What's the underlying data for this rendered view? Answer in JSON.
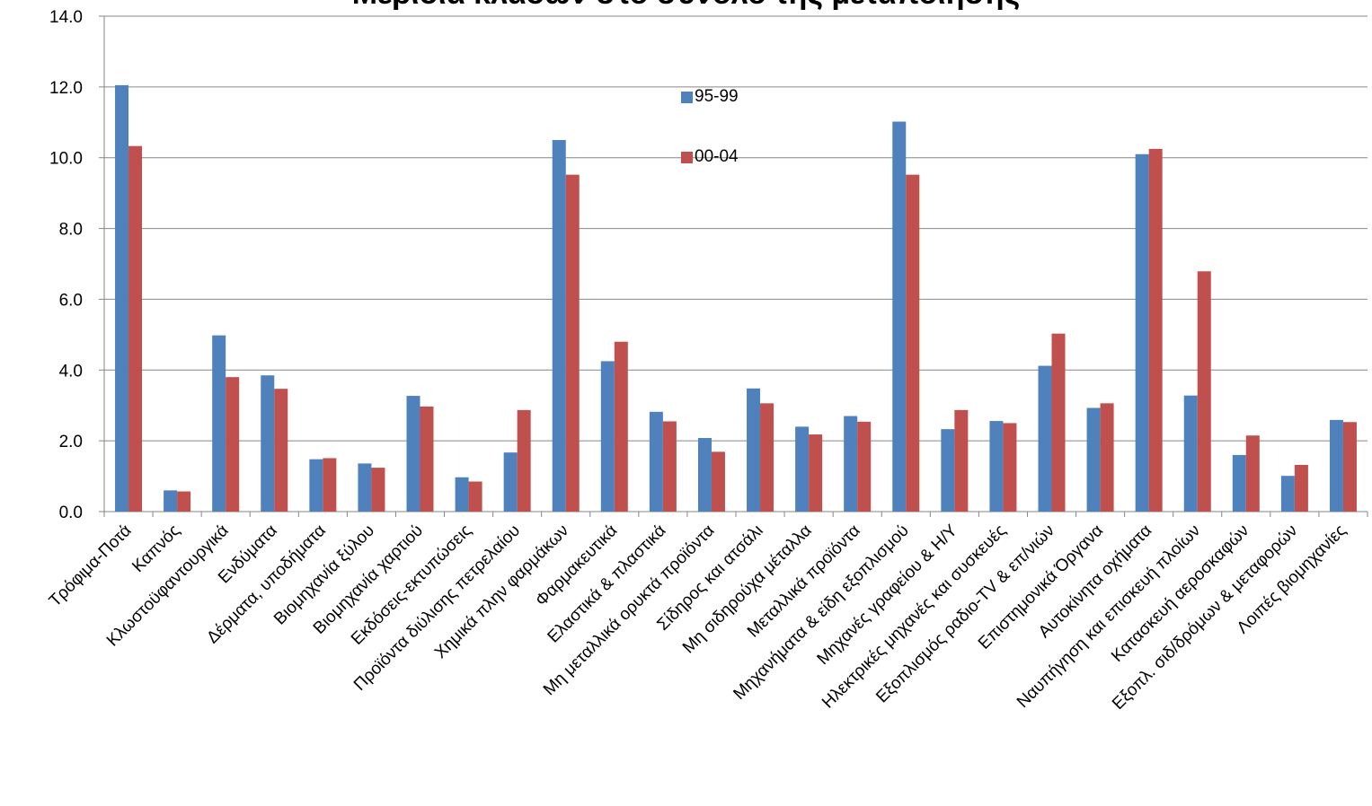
{
  "chart_data": {
    "type": "bar",
    "title": "Μερίδια κλάδων στο σύνολο της μεταποίησης",
    "xlabel": "",
    "ylabel": "",
    "ylim": [
      0,
      14
    ],
    "yticks": [
      "0.0",
      "2.0",
      "4.0",
      "6.0",
      "8.0",
      "10.0",
      "12.0",
      "14.0"
    ],
    "grid": true,
    "legend_position": "top-center",
    "categories": [
      "Τρόφιμα-Ποτά",
      "Καπνός",
      "Κλωστοϋφαντουργικά",
      "Ενδύματα",
      "Δέρματα, υποδήματα",
      "Βιομηχανία ξύλου",
      "Βιομηχανία χαρτιού",
      "Εκδόσεις-εκτυπώσεις",
      "Προϊόντα διύλισης πετρελαίου",
      "Χημικά πλην φαρμάκων",
      "Φαρμακευτικά",
      "Ελαστικά & πλαστικά",
      "Μη μεταλλικά ορυκτά προϊόντα",
      "Σίδηρος και ατσάλι",
      "Μη σιδηρούχα μέταλλα",
      "Μεταλλικά προϊόντα",
      "Μηχανήματα & είδη εξοπλισμού",
      "Μηχανές γραφείου & Η/Υ",
      "Ηλεκτρικές μηχανές και συσκευές",
      "Εξοπλισμός ραδιο-TV & επ/νιών",
      "Επιστημονικά Όργανα",
      "Αυτοκίνητα οχήματα",
      "Ναυπήγηση και επισκευή πλοίων",
      "Κατασκευή αεροσκαφών",
      "Εξοπλ. σιδ/δρόμων & μεταφορών",
      "Λοιπές βιομηχανίες"
    ],
    "series": [
      {
        "name": "95-99",
        "color": "#4f81bd",
        "values": [
          12.05,
          0.6,
          4.98,
          3.85,
          1.48,
          1.36,
          3.27,
          0.97,
          1.67,
          10.5,
          4.25,
          2.82,
          2.08,
          3.48,
          2.4,
          2.7,
          11.02,
          2.33,
          2.56,
          4.12,
          2.93,
          10.1,
          3.28,
          1.6,
          1.01,
          2.59
        ]
      },
      {
        "name": "00-04",
        "color": "#c0504d",
        "values": [
          10.33,
          0.57,
          3.8,
          3.47,
          1.51,
          1.24,
          2.97,
          0.85,
          2.87,
          9.52,
          4.8,
          2.55,
          1.69,
          3.06,
          2.18,
          2.54,
          9.52,
          2.87,
          2.5,
          5.03,
          3.06,
          10.25,
          6.79,
          2.15,
          1.32,
          2.53
        ]
      }
    ]
  }
}
